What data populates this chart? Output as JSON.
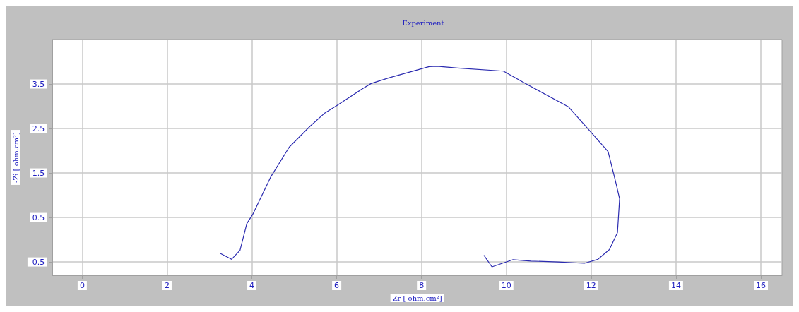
{
  "chart_data": {
    "type": "line",
    "title": "Experiment",
    "xlabel": "Zr [ ohm.cm²]",
    "ylabel": "-Zi [ ohm.cm²]",
    "x": [
      3.24,
      3.52,
      3.72,
      3.88,
      4.02,
      4.45,
      4.88,
      5.36,
      5.71,
      6.01,
      6.6,
      6.81,
      7.24,
      8.18,
      8.37,
      8.85,
      9.93,
      10.47,
      11.46,
      12.03,
      12.4,
      12.59,
      12.67,
      12.62,
      12.43,
      12.16,
      11.84,
      11.22,
      10.58,
      10.15,
      9.66,
      9.47
    ],
    "series": [
      {
        "color": "#2b2bb0",
        "values": [
          -0.3,
          -0.44,
          -0.24,
          0.36,
          0.57,
          1.42,
          2.08,
          2.54,
          2.84,
          3.02,
          3.39,
          3.51,
          3.64,
          3.89,
          3.9,
          3.86,
          3.79,
          3.5,
          2.99,
          2.38,
          1.98,
          1.25,
          0.92,
          0.16,
          -0.22,
          -0.44,
          -0.53,
          -0.5,
          -0.48,
          -0.45,
          -0.61,
          -0.35
        ]
      }
    ],
    "xlim": [
      -0.7,
      16.5
    ],
    "ylim": [
      -0.8,
      4.5
    ],
    "xticks": [
      0,
      2,
      4,
      6,
      8,
      10,
      12,
      14,
      16
    ],
    "yticks": [
      -0.5,
      0.5,
      1.5,
      2.5,
      3.5
    ],
    "grid": true
  }
}
